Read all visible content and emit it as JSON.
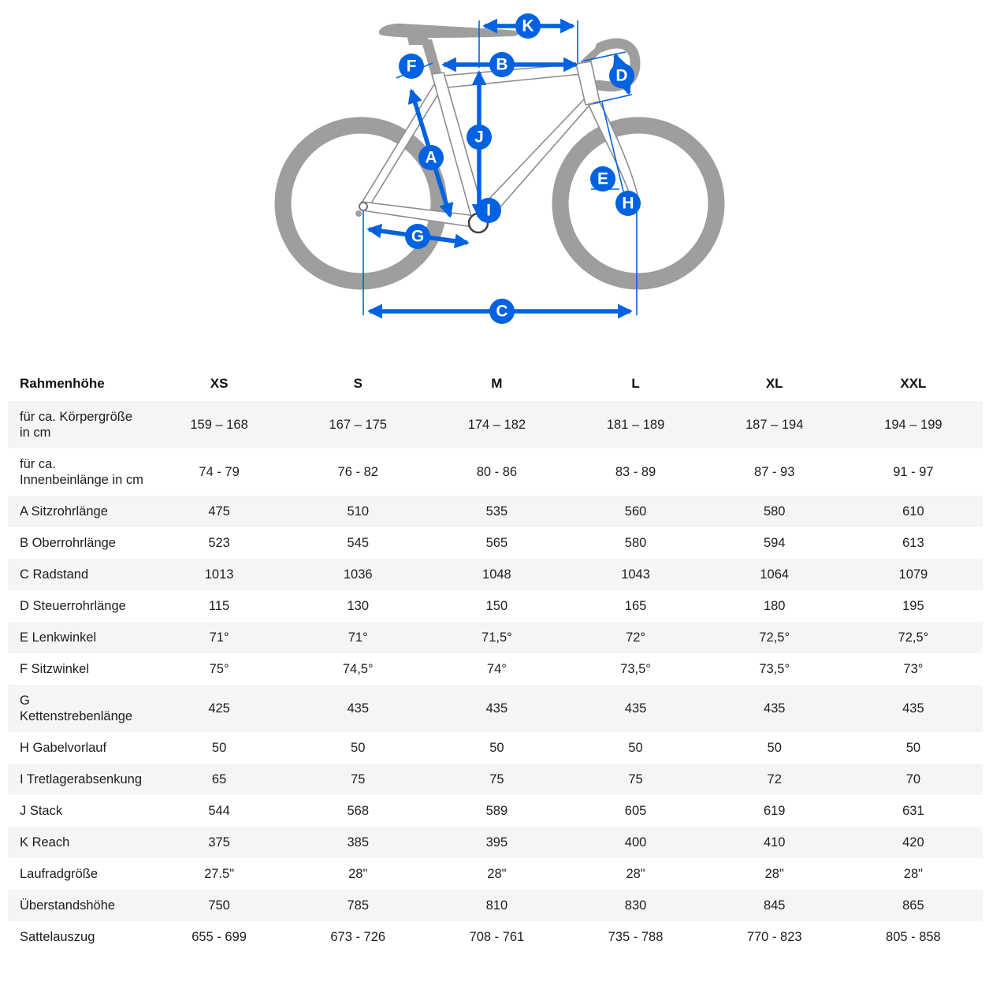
{
  "colors": {
    "accent_blue": "#0062e0",
    "bike_gray": "#9e9e9e",
    "row_shade": "#f5f5f6"
  },
  "diagram": {
    "markers": [
      {
        "letter": "A"
      },
      {
        "letter": "B"
      },
      {
        "letter": "C"
      },
      {
        "letter": "D"
      },
      {
        "letter": "E"
      },
      {
        "letter": "F"
      },
      {
        "letter": "G"
      },
      {
        "letter": "H"
      },
      {
        "letter": "I"
      },
      {
        "letter": "J"
      },
      {
        "letter": "K"
      }
    ]
  },
  "table": {
    "header": {
      "label": "Rahmenhöhe",
      "columns": [
        "XS",
        "S",
        "M",
        "L",
        "XL",
        "XXL"
      ]
    },
    "rows": [
      {
        "label": "für ca. Körpergröße in cm",
        "values": [
          "159 – 168",
          "167 – 175",
          "174 – 182",
          "181 – 189",
          "187 – 194",
          "194 – 199"
        ]
      },
      {
        "label": "für ca. Innenbeinlänge in cm",
        "values": [
          "74 - 79",
          "76 - 82",
          "80 - 86",
          "83 - 89",
          "87 - 93",
          "91 - 97"
        ]
      },
      {
        "label": "A Sitzrohrlänge",
        "values": [
          "475",
          "510",
          "535",
          "560",
          "580",
          "610"
        ]
      },
      {
        "label": "B Oberrohrlänge",
        "values": [
          "523",
          "545",
          "565",
          "580",
          "594",
          "613"
        ]
      },
      {
        "label": "C Radstand",
        "values": [
          "1013",
          "1036",
          "1048",
          "1043",
          "1064",
          "1079"
        ]
      },
      {
        "label": "D Steuerrohrlänge",
        "values": [
          "115",
          "130",
          "150",
          "165",
          "180",
          "195"
        ]
      },
      {
        "label": "E Lenkwinkel",
        "values": [
          "71°",
          "71°",
          "71,5°",
          "72°",
          "72,5°",
          "72,5°"
        ]
      },
      {
        "label": "F Sitzwinkel",
        "values": [
          "75°",
          "74,5°",
          "74°",
          "73,5°",
          "73,5°",
          "73°"
        ]
      },
      {
        "label": "G Kettenstrebenlänge",
        "values": [
          "425",
          "435",
          "435",
          "435",
          "435",
          "435"
        ]
      },
      {
        "label": "H Gabelvorlauf",
        "values": [
          "50",
          "50",
          "50",
          "50",
          "50",
          "50"
        ]
      },
      {
        "label": "I Tretlagerabsenkung",
        "values": [
          "65",
          "75",
          "75",
          "75",
          "72",
          "70"
        ]
      },
      {
        "label": "J Stack",
        "values": [
          "544",
          "568",
          "589",
          "605",
          "619",
          "631"
        ]
      },
      {
        "label": "K Reach",
        "values": [
          "375",
          "385",
          "395",
          "400",
          "410",
          "420"
        ]
      },
      {
        "label": "Laufradgröße",
        "values": [
          "27.5\"",
          "28\"",
          "28\"",
          "28\"",
          "28\"",
          "28\""
        ]
      },
      {
        "label": "Überstandshöhe",
        "values": [
          "750",
          "785",
          "810",
          "830",
          "845",
          "865"
        ]
      },
      {
        "label": "Sattelauszug",
        "values": [
          "655 - 699",
          "673 - 726",
          "708 - 761",
          "735 - 788",
          "770 - 823",
          "805 - 858"
        ]
      }
    ]
  }
}
